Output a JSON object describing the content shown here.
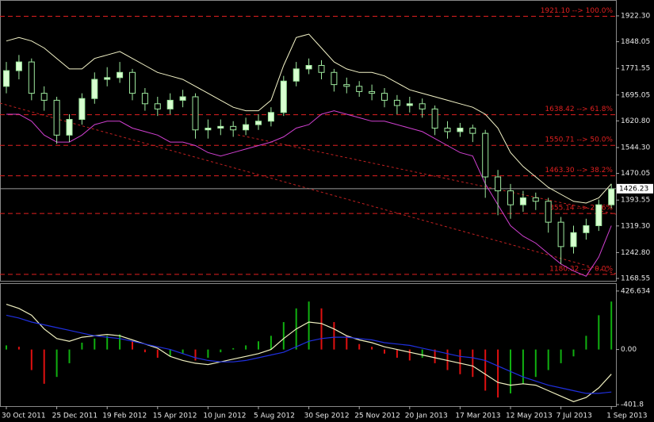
{
  "chart_data": [
    {
      "type": "candlestick",
      "open": [
        1720,
        1765,
        1790,
        1700,
        1680,
        1580,
        1625,
        1685,
        1740,
        1745,
        1760,
        1700,
        1670,
        1655,
        1680,
        1690,
        1595,
        1600,
        1605,
        1595,
        1610,
        1620,
        1645,
        1735,
        1770,
        1780,
        1760,
        1725,
        1720,
        1705,
        1700,
        1680,
        1665,
        1670,
        1655,
        1600,
        1590,
        1600,
        1585,
        1460,
        1420,
        1380,
        1400,
        1390,
        1330,
        1260,
        1300,
        1320,
        1380
      ],
      "high": [
        1790,
        1810,
        1800,
        1720,
        1690,
        1640,
        1700,
        1760,
        1775,
        1790,
        1770,
        1715,
        1690,
        1700,
        1710,
        1700,
        1625,
        1625,
        1620,
        1630,
        1640,
        1660,
        1750,
        1790,
        1800,
        1795,
        1770,
        1745,
        1735,
        1725,
        1715,
        1695,
        1690,
        1685,
        1665,
        1620,
        1615,
        1610,
        1595,
        1480,
        1440,
        1420,
        1415,
        1400,
        1345,
        1320,
        1340,
        1395,
        1440
      ],
      "low": [
        1700,
        1740,
        1680,
        1650,
        1555,
        1560,
        1610,
        1670,
        1720,
        1730,
        1680,
        1650,
        1635,
        1640,
        1660,
        1570,
        1570,
        1580,
        1575,
        1580,
        1595,
        1605,
        1635,
        1720,
        1755,
        1740,
        1705,
        1700,
        1690,
        1680,
        1660,
        1640,
        1645,
        1630,
        1580,
        1570,
        1575,
        1560,
        1400,
        1350,
        1340,
        1360,
        1365,
        1300,
        1210,
        1240,
        1280,
        1305,
        1370
      ],
      "close": [
        1765,
        1790,
        1700,
        1680,
        1580,
        1625,
        1685,
        1740,
        1745,
        1760,
        1700,
        1670,
        1655,
        1680,
        1690,
        1595,
        1600,
        1605,
        1595,
        1610,
        1620,
        1645,
        1735,
        1770,
        1780,
        1760,
        1725,
        1720,
        1705,
        1700,
        1680,
        1665,
        1670,
        1655,
        1600,
        1590,
        1600,
        1585,
        1460,
        1420,
        1380,
        1400,
        1390,
        1330,
        1260,
        1300,
        1320,
        1380,
        1425
      ],
      "up_color": "#d8ffd0",
      "down_color": "#000000",
      "outline_color": "#9ee89e",
      "series": [
        {
          "color": "#f4f4c8",
          "values": [
            1850,
            1860,
            1850,
            1830,
            1800,
            1770,
            1770,
            1800,
            1810,
            1820,
            1800,
            1780,
            1760,
            1750,
            1740,
            1720,
            1700,
            1680,
            1660,
            1650,
            1650,
            1680,
            1780,
            1860,
            1870,
            1830,
            1790,
            1770,
            1760,
            1760,
            1750,
            1730,
            1710,
            1700,
            1690,
            1680,
            1670,
            1660,
            1640,
            1600,
            1530,
            1490,
            1460,
            1430,
            1410,
            1390,
            1385,
            1400,
            1440
          ]
        },
        {
          "color": "#d040d0",
          "values": [
            1640,
            1640,
            1620,
            1580,
            1560,
            1560,
            1580,
            1610,
            1620,
            1620,
            1600,
            1590,
            1580,
            1560,
            1560,
            1550,
            1530,
            1520,
            1530,
            1540,
            1550,
            1560,
            1575,
            1600,
            1610,
            1640,
            1650,
            1640,
            1630,
            1620,
            1620,
            1610,
            1600,
            1590,
            1570,
            1550,
            1530,
            1520,
            1440,
            1380,
            1320,
            1290,
            1270,
            1240,
            1210,
            1190,
            1175,
            1230,
            1320
          ]
        }
      ],
      "levels": [
        {
          "value": 1921.1,
          "label": "1921.10 --> 100.0%"
        },
        {
          "value": 1638.42,
          "label": "1638.42 --> 61.8%"
        },
        {
          "value": 1550.71,
          "label": "1550.71 --> 50.0%"
        },
        {
          "value": 1463.3,
          "label": "1463.30 --> 38.2%"
        },
        {
          "value": 1355.14,
          "label": "1355.14 --> 23.6%"
        },
        {
          "value": 1180.32,
          "label": "1180.32 --> 0.0%"
        }
      ],
      "level_color": "#e02020",
      "last_price": 1426.23,
      "ylim": [
        1161.8,
        1967.8
      ],
      "yticks": [
        {
          "value": 1922.3,
          "label": "1922.30"
        },
        {
          "value": 1848.05,
          "label": "1848.05"
        },
        {
          "value": 1771.55,
          "label": "1771.55"
        },
        {
          "value": 1695.05,
          "label": "1695.05"
        },
        {
          "value": 1620.8,
          "label": "1620.80"
        },
        {
          "value": 1544.3,
          "label": "1544.30"
        },
        {
          "value": 1470.05,
          "label": "1470.05"
        },
        {
          "value": 1393.55,
          "label": "1393.55"
        },
        {
          "value": 1319.3,
          "label": "1319.30"
        },
        {
          "value": 1242.8,
          "label": "1242.80"
        },
        {
          "value": 1168.55,
          "label": "1168.55"
        }
      ]
    },
    {
      "type": "bar",
      "categories": [
        "30 Oct 2011",
        null,
        null,
        null,
        "25 Dec 2011",
        null,
        null,
        null,
        "19 Feb 2012",
        null,
        null,
        null,
        "15 Apr 2012",
        null,
        null,
        null,
        "10 Jun 2012",
        null,
        null,
        null,
        "5 Aug 2012",
        null,
        null,
        null,
        "30 Sep 2012",
        null,
        null,
        null,
        "25 Nov 2012",
        null,
        null,
        null,
        "20 Jan 2013",
        null,
        null,
        null,
        "17 Mar 2013",
        null,
        null,
        null,
        "12 May 2013",
        null,
        null,
        null,
        "7 Jul 2013",
        null,
        null,
        null,
        "1 Sep 2013"
      ],
      "values": [
        30,
        20,
        -150,
        -250,
        -200,
        -100,
        50,
        80,
        100,
        110,
        60,
        -20,
        -60,
        -50,
        -30,
        -80,
        -60,
        -20,
        10,
        30,
        60,
        100,
        200,
        300,
        350,
        300,
        200,
        100,
        40,
        20,
        -30,
        -60,
        -80,
        -60,
        -100,
        -150,
        -180,
        -200,
        -300,
        -350,
        -320,
        -250,
        -200,
        -150,
        -100,
        -50,
        100,
        250,
        350
      ],
      "up_color": "#10b010",
      "down_color": "#e01010",
      "series": [
        {
          "color": "#f0f0c0",
          "values": [
            330,
            300,
            250,
            150,
            80,
            60,
            90,
            100,
            110,
            100,
            70,
            40,
            10,
            -50,
            -80,
            -100,
            -110,
            -90,
            -70,
            -50,
            -30,
            0,
            80,
            150,
            200,
            190,
            150,
            100,
            70,
            50,
            20,
            0,
            -20,
            -40,
            -60,
            -80,
            -100,
            -120,
            -180,
            -240,
            -260,
            -250,
            -260,
            -300,
            -340,
            -380,
            -350,
            -280,
            -180
          ]
        },
        {
          "color": "#2030e0",
          "values": [
            250,
            230,
            200,
            180,
            160,
            140,
            120,
            100,
            90,
            80,
            60,
            40,
            20,
            0,
            -30,
            -60,
            -80,
            -90,
            -90,
            -80,
            -60,
            -40,
            -20,
            20,
            60,
            80,
            90,
            90,
            80,
            70,
            50,
            40,
            30,
            10,
            -10,
            -30,
            -50,
            -60,
            -80,
            -120,
            -160,
            -200,
            -230,
            -260,
            -280,
            -300,
            -320,
            -320,
            -310
          ]
        }
      ],
      "ylim": [
        -413,
        478
      ],
      "yticks": [
        426.634,
        {
          "value": 0,
          "label": "0.00"
        },
        -401.8
      ]
    }
  ]
}
